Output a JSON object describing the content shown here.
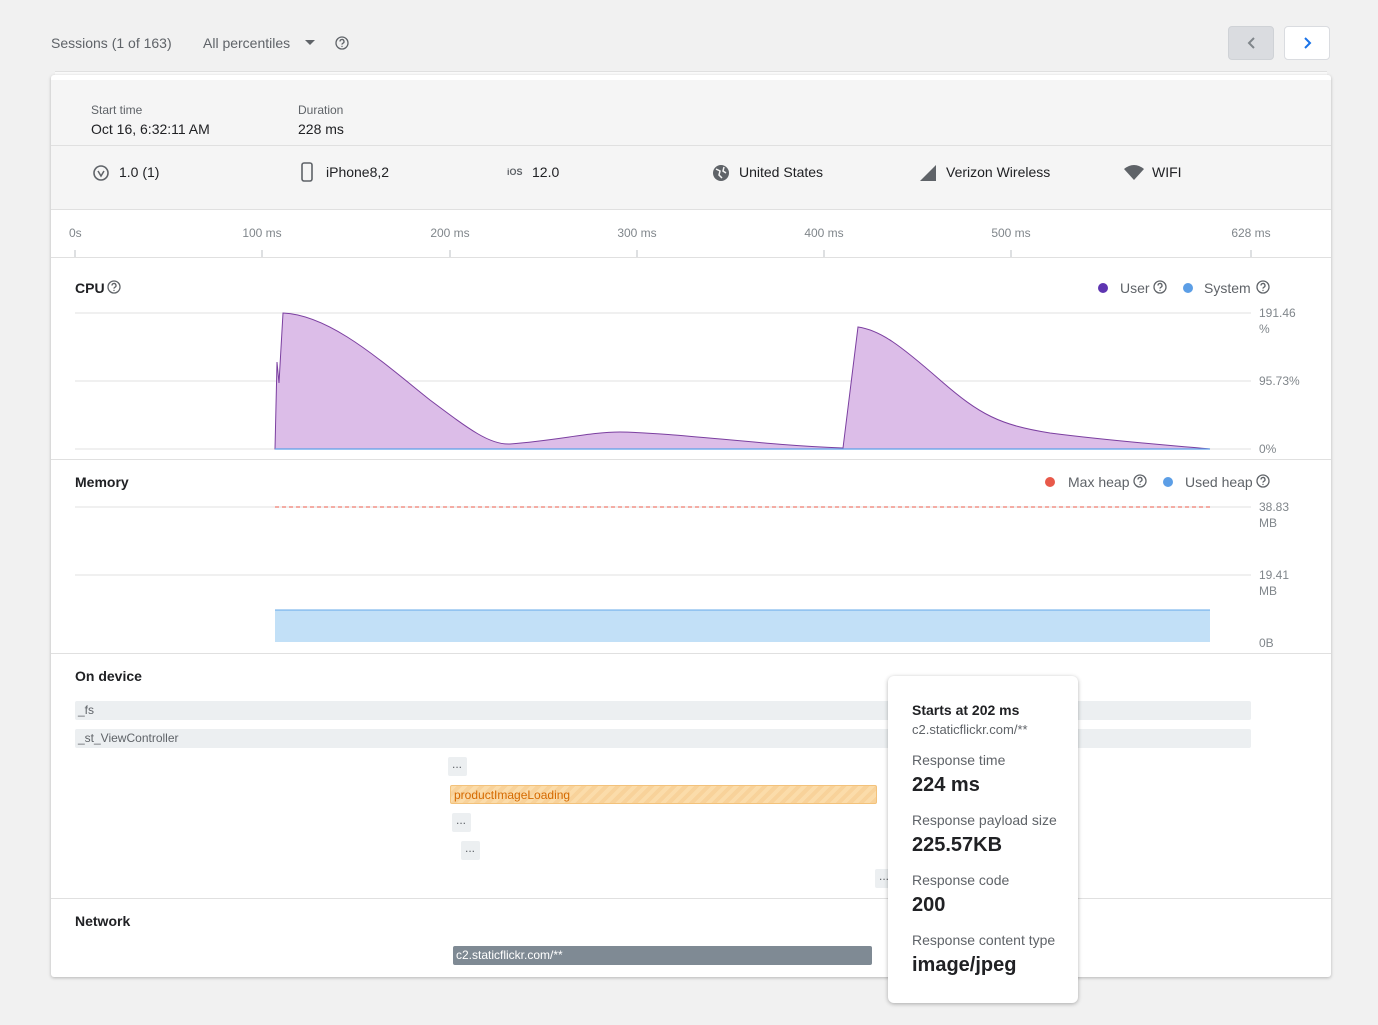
{
  "header": {
    "sessions": "Sessions (1 of 163)",
    "percentile": "All percentiles"
  },
  "summary": {
    "start_time_label": "Start time",
    "start_time": "Oct 16, 6:32:11 AM",
    "duration_label": "Duration",
    "duration": "228 ms"
  },
  "attributes": {
    "ios_icon": "iOS",
    "items": [
      "1.0 (1)",
      "iPhone8,2",
      "12.0",
      "United States",
      "Verizon Wireless",
      "WIFI"
    ]
  },
  "timeline": {
    "ticks": [
      "0s",
      "100 ms",
      "200 ms",
      "300 ms",
      "400 ms",
      "500 ms",
      "628 ms"
    ]
  },
  "cpu": {
    "title": "CPU",
    "legend": [
      "User",
      "System"
    ],
    "axis": [
      "191.46 %",
      "95.73%",
      "0%"
    ]
  },
  "memory": {
    "title": "Memory",
    "legend": [
      "Max heap",
      "Used heap"
    ],
    "axis": [
      "38.83 MB",
      "19.41 MB",
      "0B"
    ]
  },
  "on_device": {
    "title": "On device",
    "traces": [
      "_fs",
      "_st_ViewController",
      "...",
      "productImageLoading",
      "...",
      "...",
      "..."
    ]
  },
  "network": {
    "title": "Network",
    "requests": [
      "c2.staticflickr.com/**"
    ]
  },
  "tooltip": {
    "title": "Starts at 202 ms",
    "url": "c2.staticflickr.com/**",
    "fields": [
      {
        "label": "Response time",
        "value": "224 ms"
      },
      {
        "label": "Response payload size",
        "value": "225.57KB"
      },
      {
        "label": "Response code",
        "value": "200"
      },
      {
        "label": "Response content type",
        "value": "image/jpeg"
      }
    ]
  }
}
